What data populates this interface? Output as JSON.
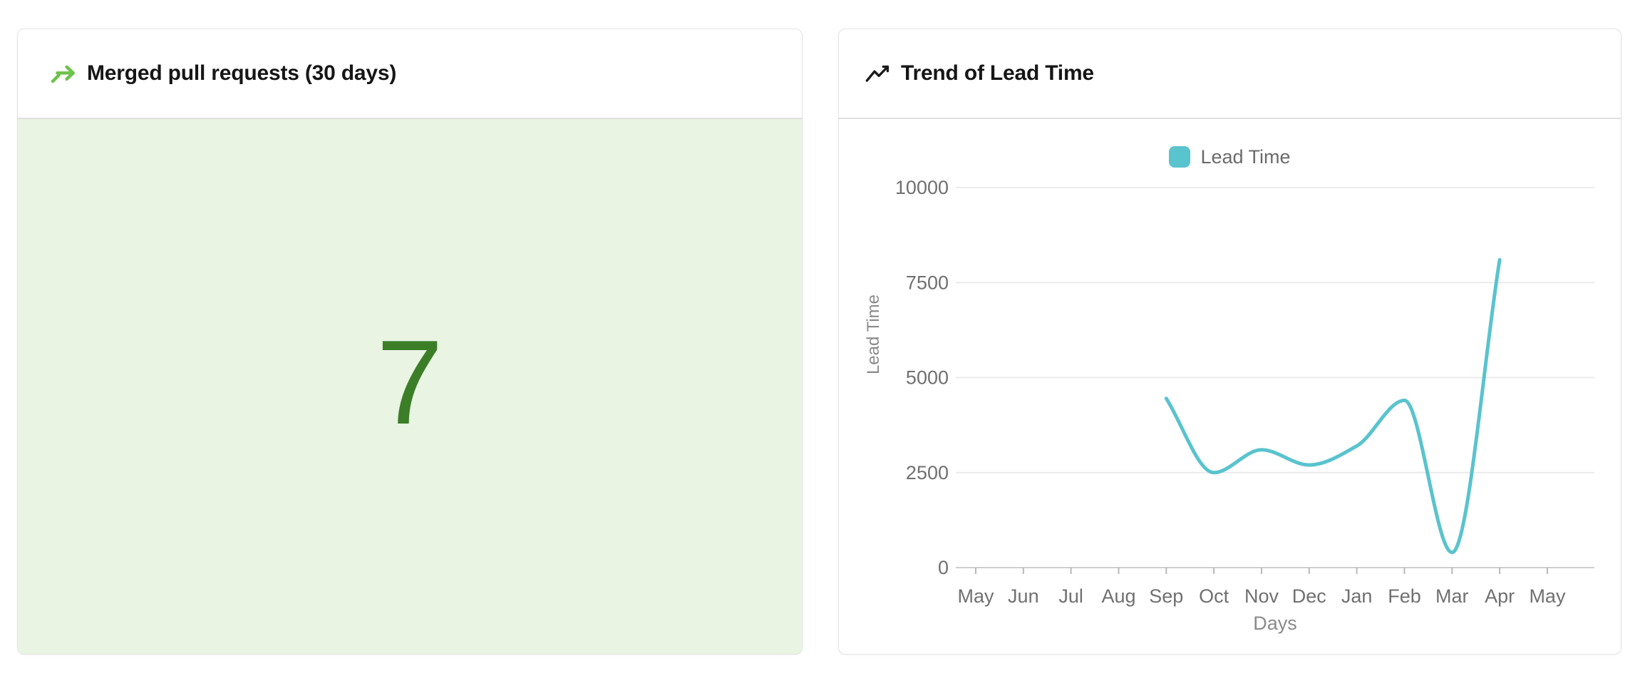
{
  "page": {
    "background": "#ffffff"
  },
  "merged_pr_card": {
    "title": "Merged pull requests (30 days)",
    "value": "7",
    "icon": "merge-arrow-icon",
    "colors": {
      "value": "#3c7e28",
      "panel_bg": "#e9f4e3",
      "icon": "#6cc24a"
    }
  },
  "lead_time_card": {
    "title": "Trend of Lead Time",
    "icon": "trend-up-icon"
  },
  "chart_data": {
    "type": "line",
    "title": "Trend of Lead Time",
    "categories": [
      "May",
      "Jun",
      "Jul",
      "Aug",
      "Sep",
      "Oct",
      "Nov",
      "Dec",
      "Jan",
      "Feb",
      "Mar",
      "Apr",
      "May"
    ],
    "series": [
      {
        "name": "Lead Time",
        "color": "#59c3ce",
        "values": [
          null,
          null,
          null,
          null,
          4450,
          2500,
          3100,
          2700,
          3200,
          4400,
          400,
          8100,
          null
        ]
      }
    ],
    "xlabel": "Days",
    "ylabel": "Lead Time",
    "ylim": [
      0,
      10000
    ],
    "yticks": [
      0,
      2500,
      5000,
      7500,
      10000
    ],
    "grid": true,
    "legend_position": "top",
    "interpolation": "monotone-cubic",
    "point_markers": false
  }
}
